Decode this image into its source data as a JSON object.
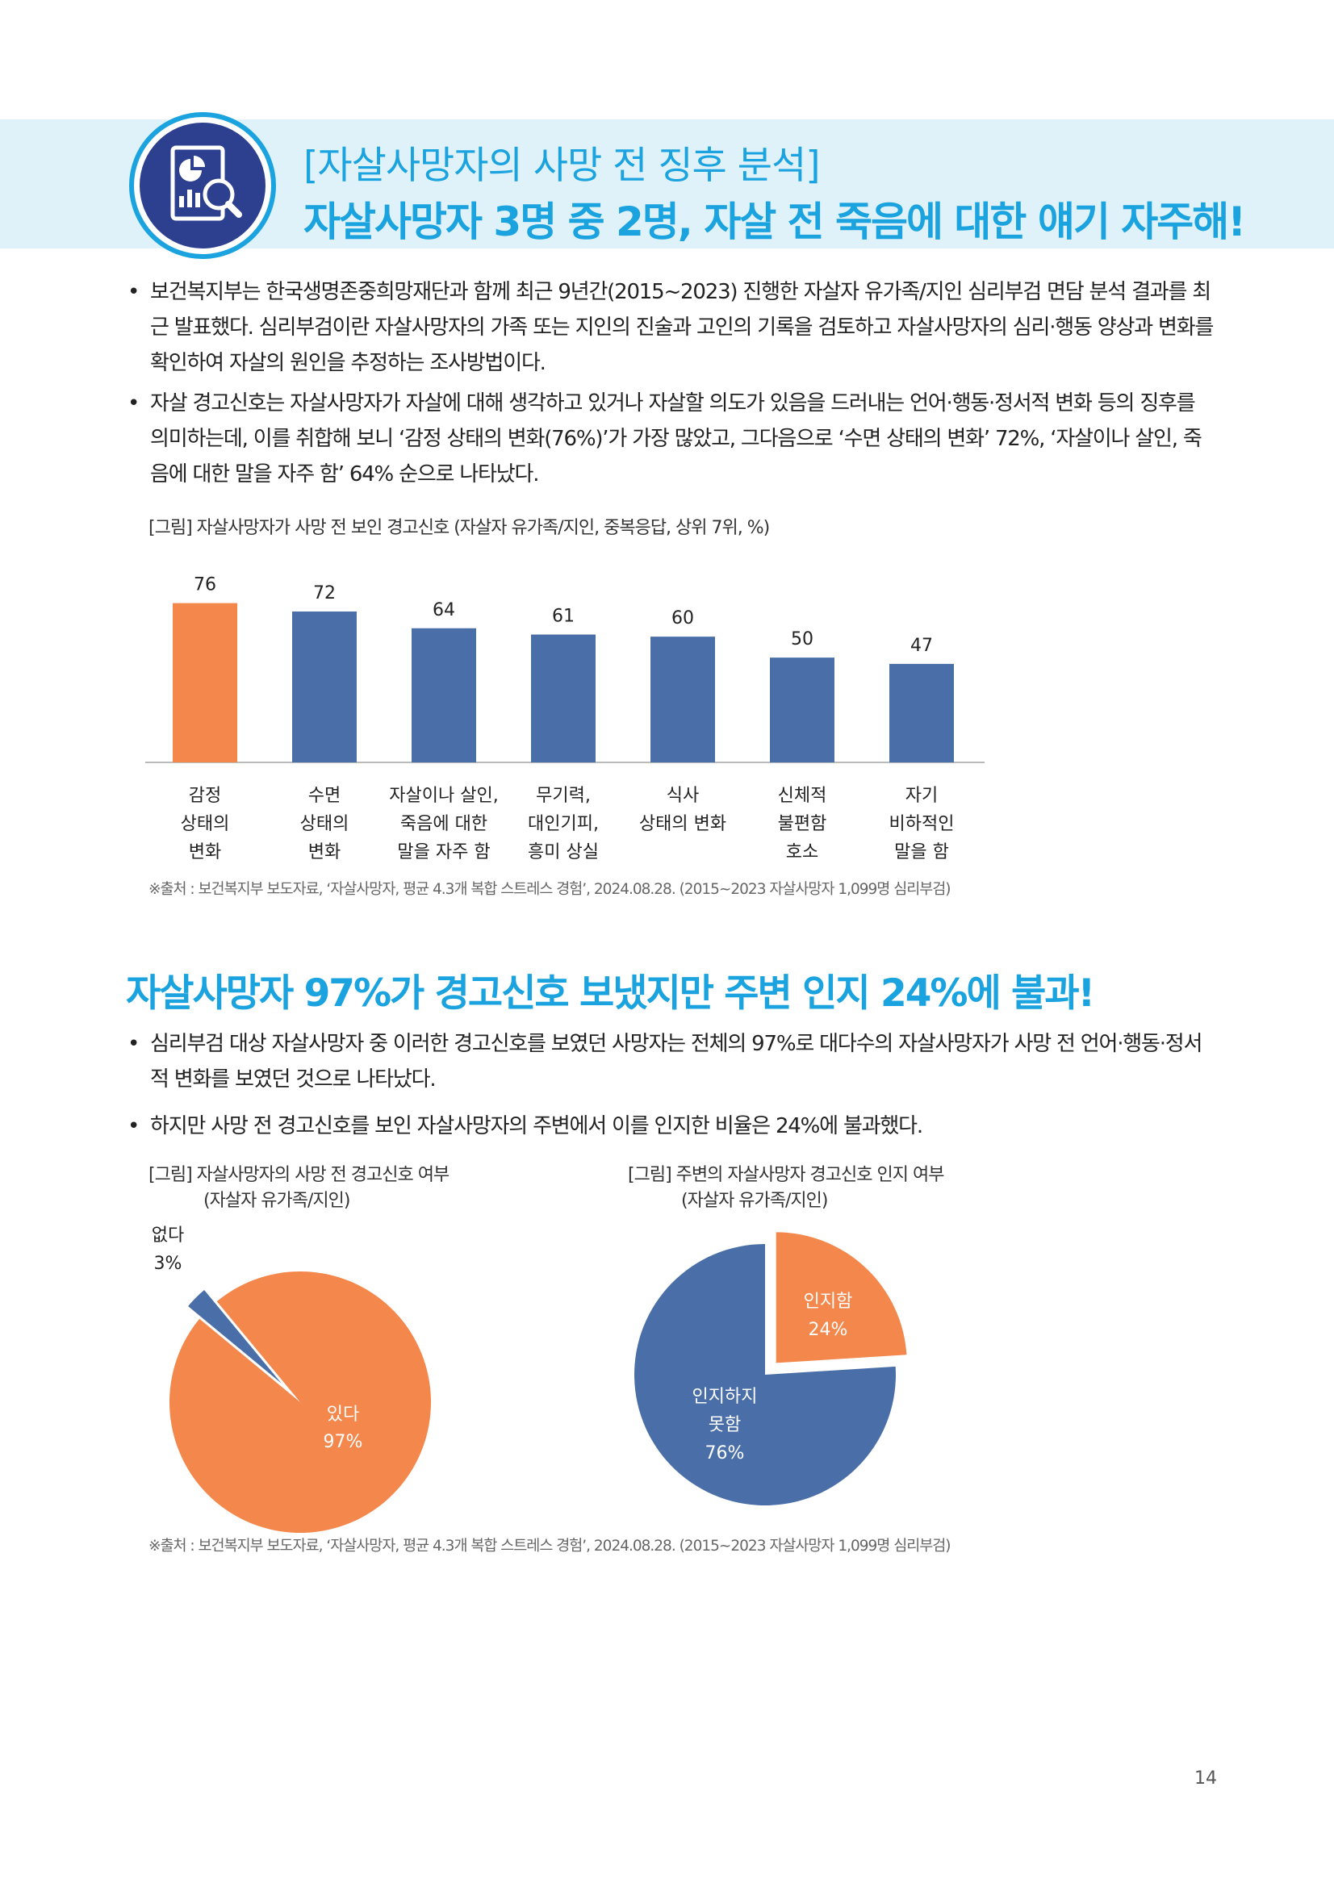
{
  "header": {
    "subtitle": "[자살사망자의 사망 전 징후 분석]",
    "title": "자살사망자 3명 중 2명, 자살 전 죽음에 대한 얘기 자주해!",
    "icon": "chart-analysis-icon"
  },
  "section1": {
    "bullets": [
      "보건복지부는 한국생명존중희망재단과 함께 최근 9년간(2015~2023) 진행한 자살자 유가족/지인 심리부검 면담 분석 결과를 최근 발표했다. 심리부검이란 자살사망자의 가족 또는 지인의 진술과 고인의 기록을 검토하고 자살사망자의 심리·행동 양상과 변화를 확인하여 자살의 원인을 추정하는 조사방법이다.",
      "자살 경고신호는 자살사망자가 자살에 대해 생각하고 있거나 자살할 의도가 있음을 드러내는 언어·행동·정서적 변화 등의 징후를 의미하는데, 이를 취합해 보니 ‘감정 상태의 변화(76%)’가 가장 많았고, 그다음으로 ‘수면 상태의 변화’ 72%, ‘자살이나 살인, 죽음에 대한 말을 자주 함’ 64% 순으로 나타났다."
    ],
    "figure_caption": "[그림] 자살사망자가 사망 전 보인 경고신호 (자살자 유가족/지인, 중복응답, 상위 7위, %)",
    "source": "※출처 : 보건복지부 보도자료, ‘자살사망자, 평균 4.3개 복합 스트레스 경험’, 2024.08.28. (2015~2023 자살사망자 1,099명 심리부검)"
  },
  "section2": {
    "title": "자살사망자 97%가 경고신호 보냈지만 주변 인지 24%에 불과!",
    "bullets": [
      "심리부검 대상 자살사망자 중 이러한 경고신호를 보였던 사망자는 전체의 97%로 대다수의 자살사망자가 사망 전 언어·행동·정서적 변화를 보였던 것으로 나타났다.",
      "하지만 사망 전 경고신호를 보인 자살사망자의 주변에서 이를 인지한 비율은 24%에 불과했다."
    ],
    "left_caption": [
      "[그림] 자살사망자의 사망 전 경고신호 여부",
      "(자살자 유가족/지인)"
    ],
    "right_caption": [
      "[그림] 주변의 자살사망자 경고신호 인지 여부",
      "(자살자 유가족/지인)"
    ],
    "source": "※출처 : 보건복지부 보도자료, ‘자살사망자, 평균 4.3개 복합 스트레스 경험’, 2024.08.28. (2015~2023 자살사망자 1,099명 심리부검)"
  },
  "chart_data": [
    {
      "type": "bar",
      "categories": [
        [
          "감정",
          "상태의",
          "변화"
        ],
        [
          "수면",
          "상태의",
          "변화"
        ],
        [
          "자살이나 살인,",
          "죽음에 대한",
          "말을 자주 함"
        ],
        [
          "무기력,",
          "대인기피,",
          "흥미 상실"
        ],
        [
          "식사",
          "상태의 변화"
        ],
        [
          "신체적",
          "불편함",
          "호소"
        ],
        [
          "자기",
          "비하적인",
          "말을 함"
        ]
      ],
      "values": [
        76,
        72,
        64,
        61,
        60,
        50,
        47
      ],
      "value_labels": [
        "76",
        "72",
        "64",
        "61",
        "60",
        "50",
        "47"
      ],
      "colors": [
        "#f4874b",
        "#4a6fa8",
        "#4a6fa8",
        "#4a6fa8",
        "#4a6fa8",
        "#4a6fa8",
        "#4a6fa8"
      ],
      "ylim": [
        0,
        100
      ],
      "grid": false
    },
    {
      "type": "pie",
      "slices": [
        {
          "label": "있다",
          "pct_label": "97%",
          "value": 97,
          "color": "#f4874b"
        },
        {
          "label": "없다",
          "pct_label": "3%",
          "value": 3,
          "color": "#4a6fa8"
        }
      ]
    },
    {
      "type": "pie",
      "slices": [
        {
          "label": "인지함",
          "pct_label": "24%",
          "value": 24,
          "color": "#f4874b"
        },
        {
          "label": "인지하지 못함",
          "label_lines": [
            "인지하지",
            "못함"
          ],
          "pct_label": "76%",
          "value": 76,
          "color": "#4a6fa8"
        }
      ]
    }
  ],
  "page": {
    "number": "14"
  }
}
